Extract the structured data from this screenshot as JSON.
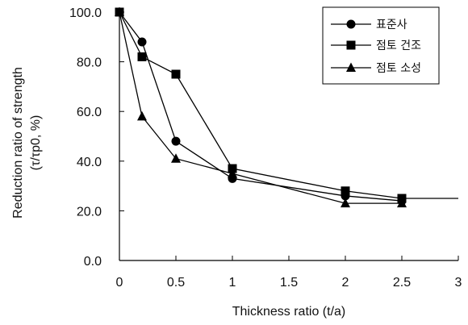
{
  "chart_data": {
    "type": "line",
    "xlabel": "Thickness ratio  (t/a)",
    "ylabel_line1": "Reduction  ratio of strength",
    "ylabel_line2": "(τ/τp0, %)",
    "xlim": [
      0,
      3
    ],
    "ylim": [
      0,
      100
    ],
    "x_ticks": [
      0,
      0.5,
      1,
      1.5,
      2,
      2.5,
      3
    ],
    "x_tick_labels": [
      "0",
      "0.5",
      "1",
      "1.5",
      "2",
      "2.5",
      "3"
    ],
    "y_ticks": [
      0,
      20,
      40,
      60,
      80,
      100
    ],
    "y_tick_labels": [
      "0.0",
      "20.0",
      "40.0",
      "60.0",
      "80.0",
      "100.0"
    ],
    "grid": false,
    "legend_position": "top-right",
    "series": [
      {
        "name": "표준사",
        "marker": "circle",
        "x": [
          0,
          0.2,
          0.5,
          1,
          2,
          2.5
        ],
        "values": [
          100,
          88,
          48,
          33,
          26,
          24
        ]
      },
      {
        "name": "점토 건조",
        "marker": "square",
        "x": [
          0,
          0.2,
          0.5,
          1,
          2,
          2.5
        ],
        "values": [
          100,
          82,
          75,
          37,
          28,
          25
        ]
      },
      {
        "name": "점토 소성",
        "marker": "triangle",
        "x": [
          0,
          0.2,
          0.5,
          1,
          2,
          2.5
        ],
        "values": [
          100,
          58,
          41,
          35,
          23,
          23
        ]
      }
    ],
    "reference_line": {
      "x": [
        2.5,
        3
      ],
      "values": [
        25,
        25
      ]
    }
  }
}
